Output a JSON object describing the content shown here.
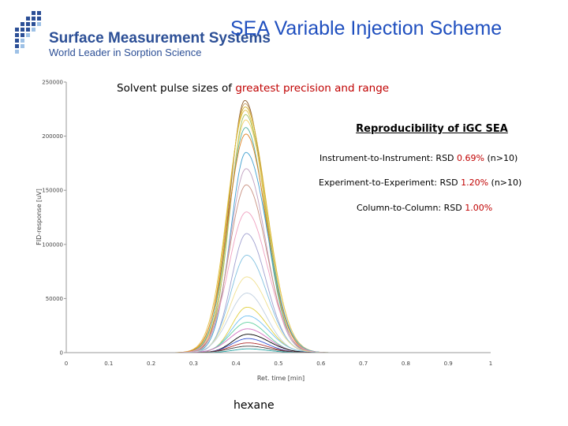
{
  "header": {
    "brand_name": "Surface Measurement Systems",
    "brand_tagline": "World Leader in Sorption Science",
    "slide_title": "SEA Variable Injection Scheme"
  },
  "subtitle": {
    "prefix": "Solvent pulse sizes of ",
    "highlight": "greatest precision and range"
  },
  "reproducibility": {
    "title": "Reproducibility of iGC SEA",
    "stats": [
      {
        "label": "Instrument-to-Instrument: RSD ",
        "value": "0.69%",
        "suffix": " (n>10)"
      },
      {
        "label": "Experiment-to-Experiment: RSD ",
        "value": "1.20%",
        "suffix": " (n>10)"
      },
      {
        "label": "Column-to-Column: RSD ",
        "value": "1.00%",
        "suffix": ""
      }
    ]
  },
  "footer_label": "hexane",
  "colors": {
    "title_blue": "#1f4fbf",
    "brand_blue": "#2c4f96",
    "highlight_red": "#c00000"
  },
  "chart_data": {
    "type": "line",
    "xlabel": "Ret. time [min]",
    "ylabel": "FID-response [uV]",
    "xlim": [
      0,
      1
    ],
    "ylim": [
      0,
      250000
    ],
    "x_ticks": [
      "0",
      "0.1",
      "0.2",
      "0.3",
      "0.4",
      "0.5",
      "0.6",
      "0.7",
      "0.8",
      "0.9",
      "1"
    ],
    "y_ticks": [
      "0",
      "50000",
      "100000",
      "150000",
      "200000",
      "250000"
    ],
    "peak_center_min": 0.425,
    "series": [
      {
        "peak_height": 233000,
        "color": "#8b5a2b"
      },
      {
        "peak_height": 230000,
        "color": "#c8a060"
      },
      {
        "peak_height": 227000,
        "color": "#d4b02a"
      },
      {
        "peak_height": 224000,
        "color": "#e0c040"
      },
      {
        "peak_height": 220000,
        "color": "#a0c060"
      },
      {
        "peak_height": 215000,
        "color": "#f0d060"
      },
      {
        "peak_height": 208000,
        "color": "#50b0a0"
      },
      {
        "peak_height": 202000,
        "color": "#e08020"
      },
      {
        "peak_height": 185000,
        "color": "#40a0d0"
      },
      {
        "peak_height": 170000,
        "color": "#c0a0c0"
      },
      {
        "peak_height": 155000,
        "color": "#c89080"
      },
      {
        "peak_height": 130000,
        "color": "#f0a0c0"
      },
      {
        "peak_height": 110000,
        "color": "#a0a0d0"
      },
      {
        "peak_height": 90000,
        "color": "#80c0e0"
      },
      {
        "peak_height": 70000,
        "color": "#f0e090"
      },
      {
        "peak_height": 55000,
        "color": "#c0d0e0"
      },
      {
        "peak_height": 42000,
        "color": "#e0d040"
      },
      {
        "peak_height": 34000,
        "color": "#70c0f0"
      },
      {
        "peak_height": 28000,
        "color": "#60d0a0"
      },
      {
        "peak_height": 22000,
        "color": "#d070c0"
      },
      {
        "peak_height": 17000,
        "color": "#000000"
      },
      {
        "peak_height": 13000,
        "color": "#3050d0"
      },
      {
        "peak_height": 9000,
        "color": "#b03030"
      },
      {
        "peak_height": 6000,
        "color": "#404040"
      },
      {
        "peak_height": 3500,
        "color": "#20a0a0"
      }
    ]
  }
}
